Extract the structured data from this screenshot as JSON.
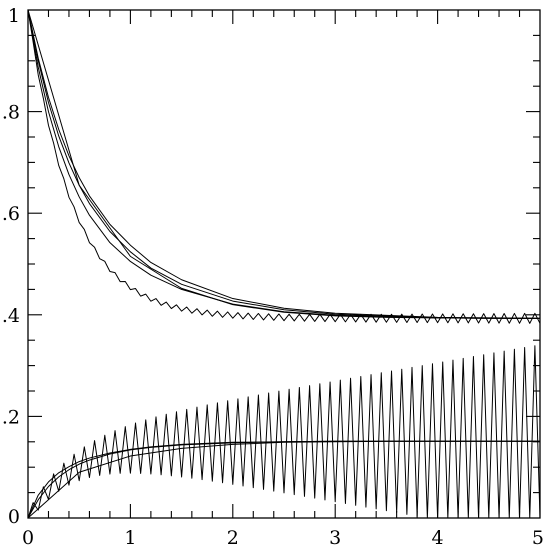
{
  "chart_data": {
    "type": "line",
    "title": "",
    "xlabel": "",
    "ylabel": "",
    "xlim": [
      0,
      5
    ],
    "ylim": [
      0,
      1
    ],
    "x_ticks": [
      {
        "value": 0,
        "label": "0"
      },
      {
        "value": 1,
        "label": "1"
      },
      {
        "value": 2,
        "label": "2"
      },
      {
        "value": 3,
        "label": "3"
      },
      {
        "value": 4,
        "label": "4"
      },
      {
        "value": 5,
        "label": "5"
      }
    ],
    "y_ticks": [
      {
        "value": 0,
        "label": "0"
      },
      {
        "value": 0.2,
        "label": ".2"
      },
      {
        "value": 0.4,
        "label": ".4"
      },
      {
        "value": 0.6,
        "label": ".6"
      },
      {
        "value": 0.8,
        "label": ".8"
      },
      {
        "value": 1,
        "label": "1"
      }
    ],
    "grid": false,
    "legend": "none",
    "line_color": "#000000",
    "series": [
      {
        "x": [
          0,
          0.5,
          1,
          1.5,
          2,
          2.5,
          3,
          3.5,
          4,
          4.5,
          5
        ],
        "y": [
          1,
          0.655,
          0.515,
          0.452,
          0.42,
          0.405,
          0.398,
          0.395,
          0.394,
          0.393,
          0.393
        ]
      },
      {
        "x": [
          0,
          0.1,
          0.2,
          0.3,
          0.4,
          0.5,
          0.6,
          0.8,
          1,
          1.2,
          1.5,
          2,
          2.5,
          3,
          4,
          5
        ],
        "y": [
          1,
          0.905,
          0.828,
          0.765,
          0.713,
          0.67,
          0.634,
          0.578,
          0.537,
          0.503,
          0.469,
          0.432,
          0.413,
          0.403,
          0.395,
          0.393
        ]
      },
      {
        "x": [
          0,
          0.1,
          0.2,
          0.3,
          0.4,
          0.5,
          0.6,
          0.8,
          1,
          1.2,
          1.5,
          2,
          2.5,
          3,
          4,
          5
        ],
        "y": [
          1,
          0.9,
          0.818,
          0.752,
          0.699,
          0.655,
          0.619,
          0.564,
          0.524,
          0.492,
          0.46,
          0.427,
          0.41,
          0.401,
          0.394,
          0.393
        ]
      },
      {
        "x": [
          0,
          0.1,
          0.2,
          0.3,
          0.4,
          0.5,
          0.6,
          0.8,
          1,
          1.2,
          1.5,
          2,
          2.5,
          3,
          4,
          5
        ],
        "y": [
          1,
          0.887,
          0.8,
          0.731,
          0.676,
          0.632,
          0.596,
          0.542,
          0.505,
          0.478,
          0.45,
          0.421,
          0.406,
          0.399,
          0.394,
          0.393
        ]
      },
      {
        "x": [
          0,
          0.5,
          1,
          1.5,
          2,
          2.5,
          3,
          3.5,
          4,
          4.5,
          5
        ],
        "y": [
          0,
          0.09,
          0.122,
          0.137,
          0.145,
          0.149,
          0.15,
          0.151,
          0.151,
          0.151,
          0.151
        ]
      },
      {
        "x": [
          0,
          0.1,
          0.2,
          0.3,
          0.4,
          0.5,
          0.6,
          0.8,
          1,
          1.2,
          1.5,
          2,
          2.5,
          3,
          4,
          5
        ],
        "y": [
          0,
          0.045,
          0.071,
          0.089,
          0.101,
          0.111,
          0.118,
          0.128,
          0.135,
          0.14,
          0.145,
          0.149,
          0.15,
          0.151,
          0.151,
          0.151
        ]
      },
      {
        "x": [
          0,
          0.1,
          0.2,
          0.3,
          0.4,
          0.5,
          0.6,
          0.8,
          1,
          1.2,
          1.5,
          2,
          2.5,
          3,
          4,
          5
        ],
        "y": [
          0,
          0.036,
          0.062,
          0.081,
          0.095,
          0.106,
          0.114,
          0.126,
          0.134,
          0.139,
          0.144,
          0.148,
          0.15,
          0.151,
          0.151,
          0.151
        ]
      },
      {
        "description_free": true,
        "oscillating": true,
        "x_start": 0,
        "x_end": 5,
        "cycle_width": 0.1,
        "base_decay_start": 1,
        "base_asymptote": 0.393,
        "base_rate": 2.3,
        "amp_start": 0.003,
        "amp_end": 0.01,
        "y": []
      },
      {
        "oscillating": true,
        "x_start": 0,
        "x_end": 5,
        "cycle_width": 0.1,
        "base_asymptote": 0.151,
        "base_rate": 2.3,
        "amp_start": 0.012,
        "amp_end": 0.19,
        "y": []
      }
    ]
  }
}
